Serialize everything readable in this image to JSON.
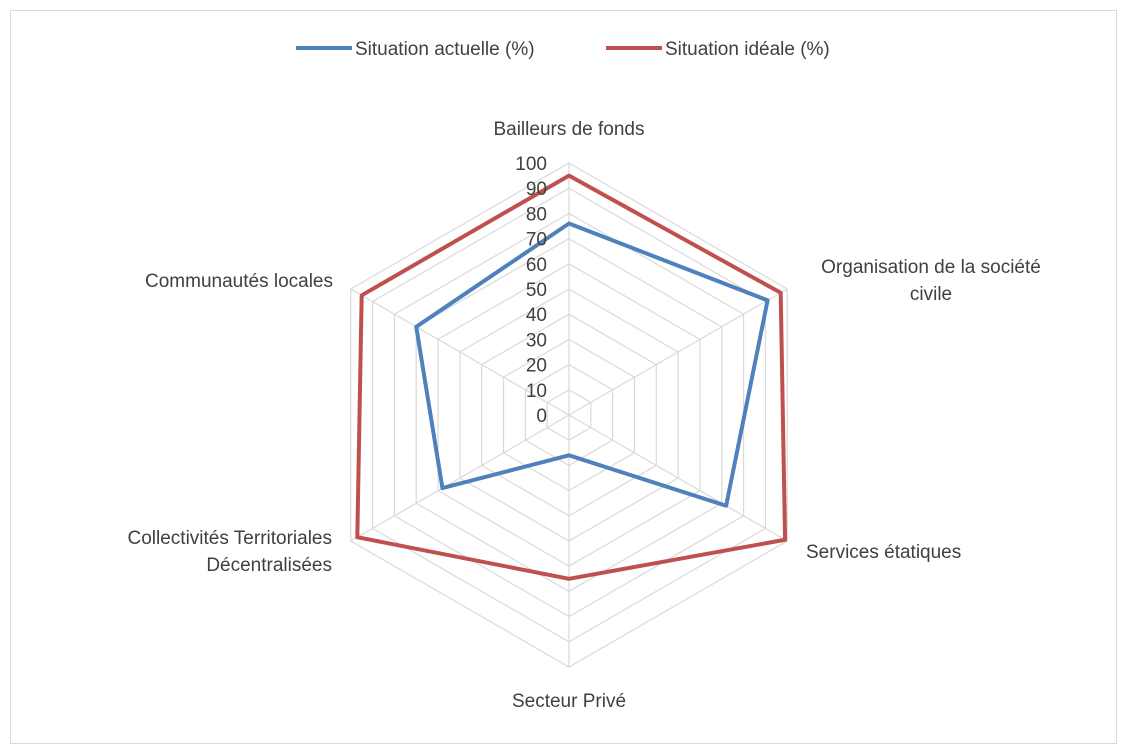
{
  "chart_data": {
    "type": "radar",
    "title": "",
    "axes": [
      [
        "Bailleurs de fonds"
      ],
      [
        "Organisation de la société",
        "civile"
      ],
      [
        "Services étatiques"
      ],
      [
        "Secteur Privé"
      ],
      [
        "Collectivités Territoriales",
        "Décentralisées"
      ],
      [
        "Communautés locales"
      ]
    ],
    "range": [
      0,
      100
    ],
    "ticks": [
      "0",
      "10",
      "20",
      "30",
      "40",
      "50",
      "60",
      "70",
      "80",
      "90",
      "100"
    ],
    "legend_position": "top",
    "series": [
      {
        "name": "Situation actuelle (%)",
        "color": "#4f81bd",
        "values": [
          76,
          91,
          72,
          16,
          58,
          70
        ]
      },
      {
        "name": "Situation idéale (%)",
        "color": "#c0504d",
        "values": [
          95,
          97,
          99,
          65,
          97,
          95
        ]
      }
    ]
  }
}
